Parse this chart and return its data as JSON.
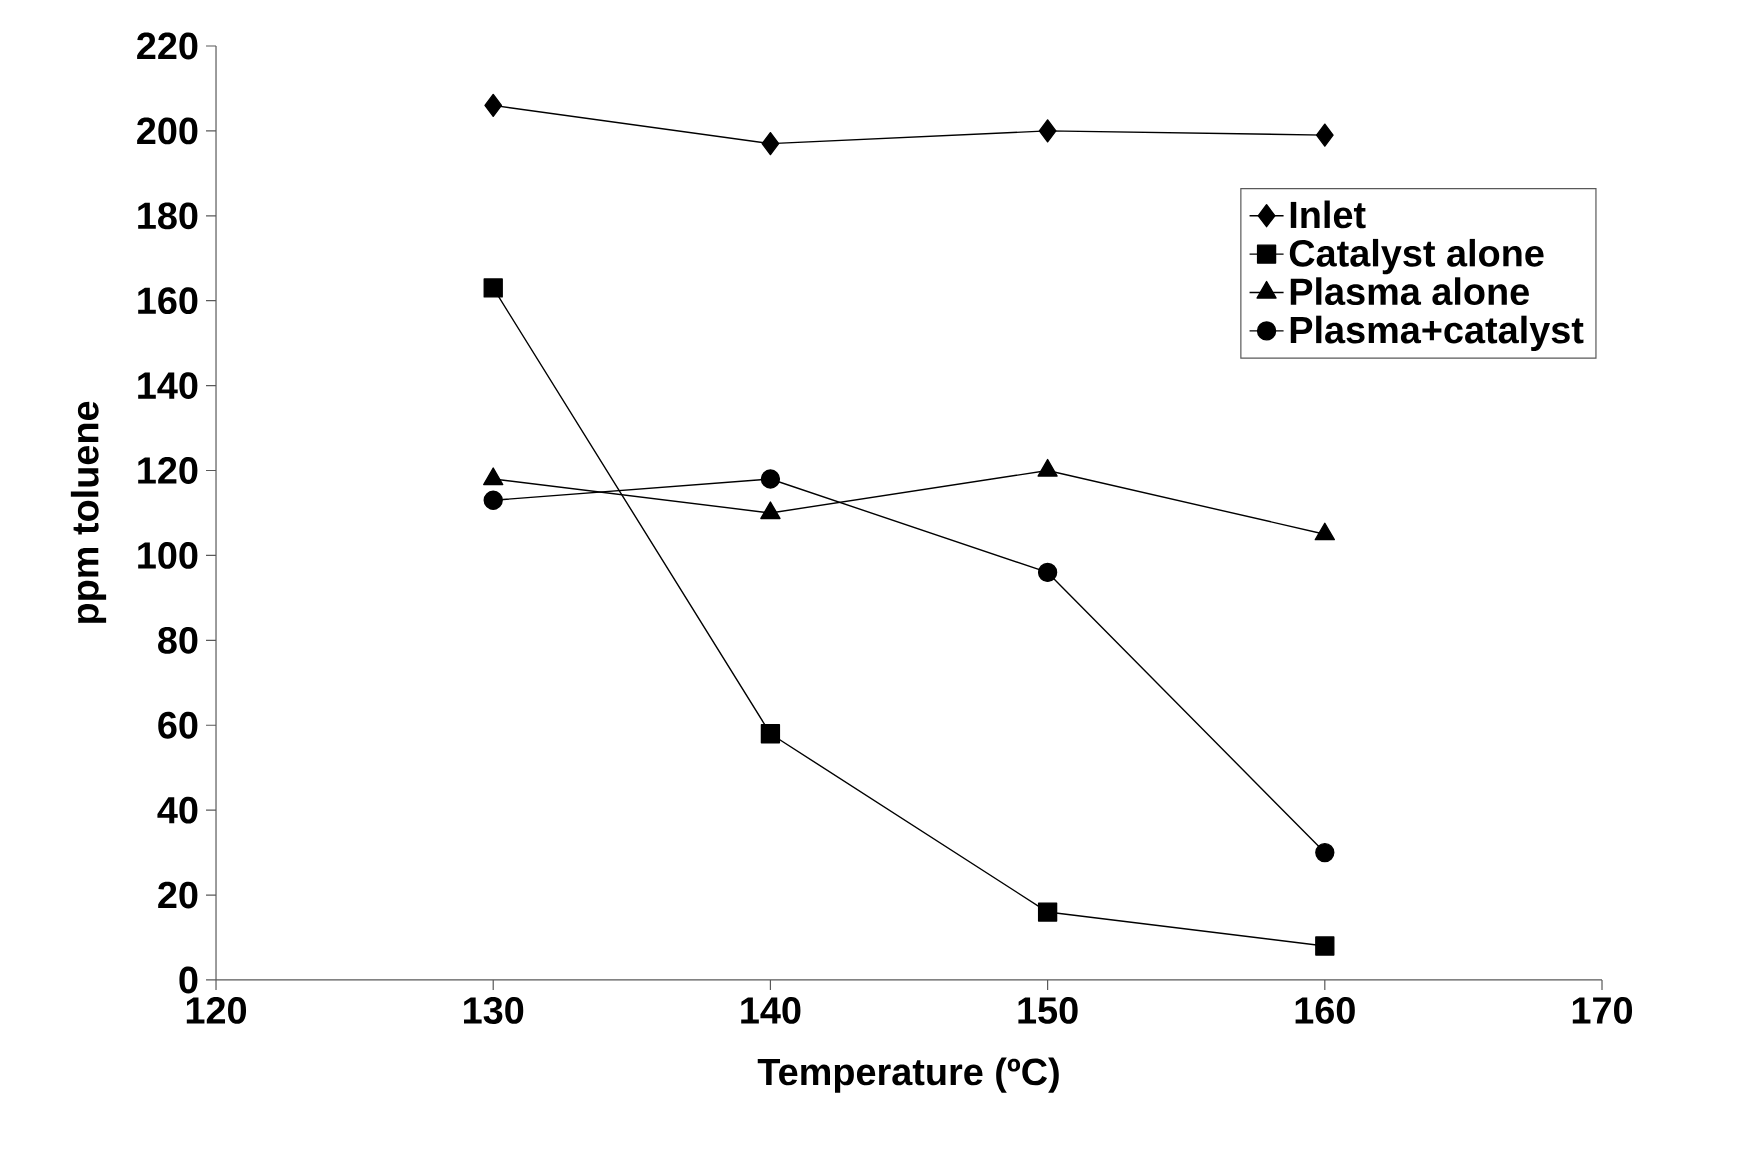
{
  "chart_data": {
    "type": "line",
    "xlabel": "Temperature (ºC)",
    "ylabel": "ppm toluene",
    "x": [
      130,
      140,
      150,
      160
    ],
    "xlim": [
      120,
      170
    ],
    "xticks": [
      120,
      130,
      140,
      150,
      160,
      170
    ],
    "ylim": [
      0,
      220
    ],
    "yticks": [
      0,
      20,
      40,
      60,
      80,
      100,
      120,
      140,
      160,
      180,
      200,
      220
    ],
    "grid": false,
    "legend": "right",
    "line_style": "solid",
    "series": [
      {
        "name": "Inlet",
        "color": "#000000",
        "marker": "diamond",
        "values": [
          206,
          197,
          200,
          199
        ]
      },
      {
        "name": "Catalyst alone",
        "color": "#000000",
        "marker": "square",
        "values": [
          163,
          58,
          16,
          8
        ]
      },
      {
        "name": "Plasma alone",
        "color": "#000000",
        "marker": "triangle",
        "values": [
          118,
          110,
          120,
          105
        ]
      },
      {
        "name": "Plasma+catalyst",
        "color": "#000000",
        "marker": "circle",
        "values": [
          113,
          118,
          96,
          30
        ]
      }
    ]
  }
}
